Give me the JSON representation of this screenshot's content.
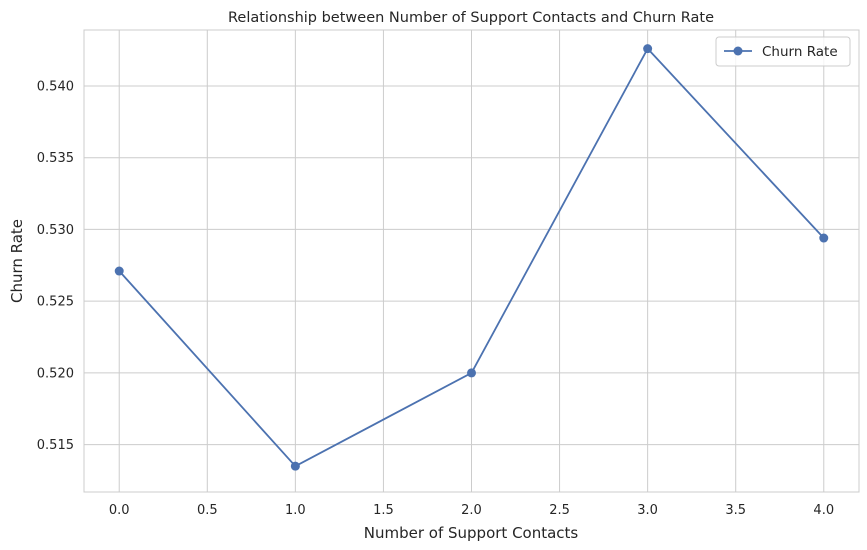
{
  "chart_data": {
    "type": "line",
    "title": "Relationship between Number of Support Contacts and Churn Rate",
    "xlabel": "Number of Support Contacts",
    "ylabel": "Churn Rate",
    "xlim": [
      -0.2,
      4.2
    ],
    "ylim": [
      0.5117,
      0.5439
    ],
    "xticks": [
      0.0,
      0.5,
      1.0,
      1.5,
      2.0,
      2.5,
      3.0,
      3.5,
      4.0
    ],
    "xtick_labels": [
      "0.0",
      "0.5",
      "1.0",
      "1.5",
      "2.0",
      "2.5",
      "3.0",
      "3.5",
      "4.0"
    ],
    "yticks": [
      0.515,
      0.52,
      0.525,
      0.53,
      0.535,
      0.54
    ],
    "ytick_labels": [
      "0.515",
      "0.520",
      "0.525",
      "0.530",
      "0.535",
      "0.540"
    ],
    "grid": true,
    "legend_position": "top-right",
    "series": [
      {
        "name": "Churn Rate",
        "color": "#4c72b0",
        "marker": "circle",
        "x": [
          0,
          1,
          2,
          3,
          4
        ],
        "y": [
          0.5271,
          0.5135,
          0.52,
          0.5426,
          0.5294
        ]
      }
    ]
  }
}
